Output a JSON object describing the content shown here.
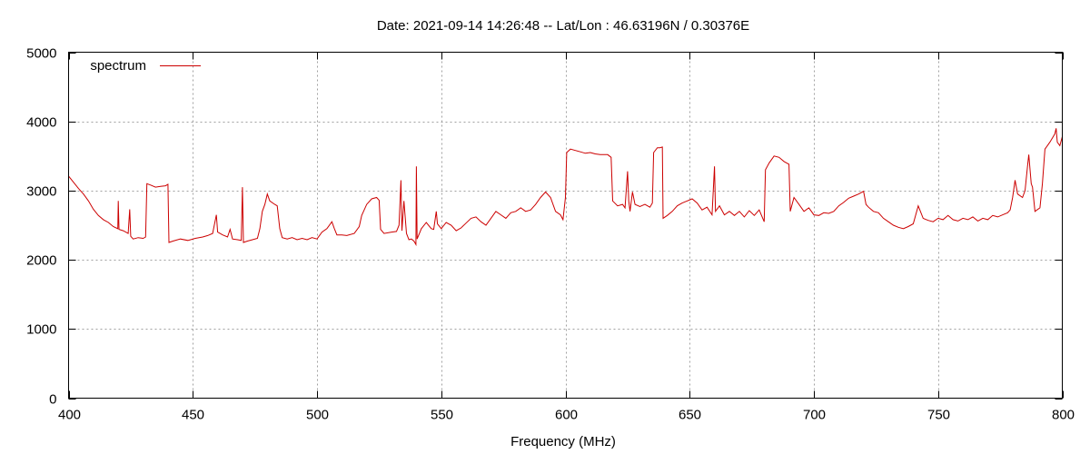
{
  "chart_data": {
    "type": "line",
    "title": "Date: 2021-09-14 14:26:48  --  Lat/Lon : 46.63196N / 0.30376E",
    "xlabel": "Frequency (MHz)",
    "ylabel": "",
    "xlim": [
      400,
      800
    ],
    "ylim": [
      0,
      5000
    ],
    "x_ticks": [
      400,
      450,
      500,
      550,
      600,
      650,
      700,
      750,
      800
    ],
    "y_ticks": [
      0,
      1000,
      2000,
      3000,
      4000,
      5000
    ],
    "grid": true,
    "legend": {
      "position": "top-left"
    },
    "series": [
      {
        "name": "spectrum",
        "color": "#cc0000",
        "points": [
          [
            400,
            3210
          ],
          [
            402,
            3120
          ],
          [
            404,
            3030
          ],
          [
            406,
            2950
          ],
          [
            408,
            2850
          ],
          [
            410,
            2730
          ],
          [
            412,
            2640
          ],
          [
            414,
            2580
          ],
          [
            416,
            2540
          ],
          [
            418,
            2480
          ],
          [
            419.8,
            2450
          ],
          [
            420,
            2850
          ],
          [
            420.3,
            2440
          ],
          [
            422,
            2420
          ],
          [
            424,
            2380
          ],
          [
            424.6,
            2730
          ],
          [
            425,
            2340
          ],
          [
            426,
            2300
          ],
          [
            428,
            2320
          ],
          [
            430,
            2310
          ],
          [
            431,
            2330
          ],
          [
            431.5,
            3100
          ],
          [
            433,
            3080
          ],
          [
            435,
            3050
          ],
          [
            437,
            3060
          ],
          [
            439,
            3070
          ],
          [
            440,
            3090
          ],
          [
            440.4,
            2250
          ],
          [
            442,
            2270
          ],
          [
            445,
            2300
          ],
          [
            448,
            2280
          ],
          [
            451,
            2310
          ],
          [
            454,
            2330
          ],
          [
            456,
            2350
          ],
          [
            458,
            2380
          ],
          [
            459.5,
            2650
          ],
          [
            460,
            2400
          ],
          [
            462,
            2360
          ],
          [
            464,
            2330
          ],
          [
            465,
            2440
          ],
          [
            466,
            2300
          ],
          [
            468,
            2290
          ],
          [
            469.5,
            2280
          ],
          [
            470,
            3050
          ],
          [
            470.4,
            2250
          ],
          [
            472,
            2270
          ],
          [
            474,
            2290
          ],
          [
            476,
            2310
          ],
          [
            477,
            2450
          ],
          [
            478,
            2700
          ],
          [
            479,
            2800
          ],
          [
            480,
            2950
          ],
          [
            481,
            2850
          ],
          [
            483,
            2800
          ],
          [
            484,
            2780
          ],
          [
            485,
            2450
          ],
          [
            486,
            2320
          ],
          [
            488,
            2300
          ],
          [
            490,
            2320
          ],
          [
            492,
            2290
          ],
          [
            494,
            2310
          ],
          [
            496,
            2290
          ],
          [
            498,
            2320
          ],
          [
            500,
            2300
          ],
          [
            502,
            2400
          ],
          [
            504,
            2450
          ],
          [
            506,
            2550
          ],
          [
            507,
            2450
          ],
          [
            508,
            2360
          ],
          [
            510,
            2360
          ],
          [
            512,
            2350
          ],
          [
            515,
            2380
          ],
          [
            517,
            2480
          ],
          [
            518,
            2640
          ],
          [
            520,
            2800
          ],
          [
            522,
            2880
          ],
          [
            524,
            2900
          ],
          [
            525,
            2860
          ],
          [
            525.6,
            2440
          ],
          [
            527,
            2380
          ],
          [
            530,
            2400
          ],
          [
            532,
            2410
          ],
          [
            533,
            2500
          ],
          [
            533.8,
            3150
          ],
          [
            534.2,
            2420
          ],
          [
            535,
            2850
          ],
          [
            536,
            2380
          ],
          [
            537,
            2290
          ],
          [
            538,
            2300
          ],
          [
            539,
            2270
          ],
          [
            539.8,
            2220
          ],
          [
            540,
            3350
          ],
          [
            540.3,
            2300
          ],
          [
            542,
            2450
          ],
          [
            544,
            2540
          ],
          [
            546,
            2450
          ],
          [
            547,
            2440
          ],
          [
            548,
            2700
          ],
          [
            548.5,
            2520
          ],
          [
            550,
            2450
          ],
          [
            552,
            2540
          ],
          [
            554,
            2500
          ],
          [
            556,
            2420
          ],
          [
            558,
            2460
          ],
          [
            560,
            2530
          ],
          [
            562,
            2600
          ],
          [
            564,
            2620
          ],
          [
            566,
            2550
          ],
          [
            568,
            2500
          ],
          [
            570,
            2600
          ],
          [
            572,
            2700
          ],
          [
            574,
            2650
          ],
          [
            576,
            2600
          ],
          [
            578,
            2680
          ],
          [
            580,
            2700
          ],
          [
            582,
            2750
          ],
          [
            584,
            2700
          ],
          [
            586,
            2720
          ],
          [
            588,
            2800
          ],
          [
            590,
            2900
          ],
          [
            592,
            2980
          ],
          [
            594,
            2900
          ],
          [
            596,
            2700
          ],
          [
            598,
            2650
          ],
          [
            599,
            2580
          ],
          [
            600,
            2900
          ],
          [
            600.5,
            3550
          ],
          [
            602,
            3600
          ],
          [
            604,
            3580
          ],
          [
            606,
            3560
          ],
          [
            608,
            3540
          ],
          [
            610,
            3550
          ],
          [
            612,
            3530
          ],
          [
            614,
            3520
          ],
          [
            617,
            3520
          ],
          [
            618.4,
            3480
          ],
          [
            619,
            2850
          ],
          [
            621,
            2780
          ],
          [
            623,
            2800
          ],
          [
            624,
            2750
          ],
          [
            625,
            3280
          ],
          [
            625.5,
            2850
          ],
          [
            626,
            2700
          ],
          [
            627,
            2980
          ],
          [
            628,
            2800
          ],
          [
            630,
            2770
          ],
          [
            632,
            2800
          ],
          [
            634,
            2760
          ],
          [
            635,
            2820
          ],
          [
            635.5,
            3550
          ],
          [
            637,
            3620
          ],
          [
            638,
            3620
          ],
          [
            639,
            3630
          ],
          [
            639.3,
            2600
          ],
          [
            641,
            2640
          ],
          [
            643,
            2700
          ],
          [
            645,
            2780
          ],
          [
            647,
            2820
          ],
          [
            649,
            2850
          ],
          [
            651,
            2880
          ],
          [
            653,
            2820
          ],
          [
            655,
            2720
          ],
          [
            657,
            2760
          ],
          [
            659,
            2650
          ],
          [
            660,
            3350
          ],
          [
            660.4,
            2700
          ],
          [
            662,
            2780
          ],
          [
            664,
            2650
          ],
          [
            666,
            2700
          ],
          [
            668,
            2640
          ],
          [
            670,
            2700
          ],
          [
            672,
            2620
          ],
          [
            674,
            2710
          ],
          [
            676,
            2640
          ],
          [
            678,
            2720
          ],
          [
            680,
            2550
          ],
          [
            680.5,
            3300
          ],
          [
            682,
            3400
          ],
          [
            684,
            3500
          ],
          [
            686,
            3480
          ],
          [
            688,
            3420
          ],
          [
            690,
            3380
          ],
          [
            690.5,
            2700
          ],
          [
            692,
            2900
          ],
          [
            694,
            2800
          ],
          [
            696,
            2700
          ],
          [
            698,
            2750
          ],
          [
            700,
            2650
          ],
          [
            702,
            2640
          ],
          [
            704,
            2680
          ],
          [
            706,
            2670
          ],
          [
            708,
            2700
          ],
          [
            710,
            2780
          ],
          [
            712,
            2830
          ],
          [
            714,
            2890
          ],
          [
            716,
            2920
          ],
          [
            718,
            2950
          ],
          [
            720,
            2990
          ],
          [
            721,
            2800
          ],
          [
            722,
            2760
          ],
          [
            724,
            2700
          ],
          [
            726,
            2680
          ],
          [
            728,
            2600
          ],
          [
            730,
            2550
          ],
          [
            732,
            2500
          ],
          [
            734,
            2470
          ],
          [
            736,
            2450
          ],
          [
            738,
            2480
          ],
          [
            740,
            2520
          ],
          [
            742,
            2780
          ],
          [
            744,
            2600
          ],
          [
            746,
            2570
          ],
          [
            748,
            2550
          ],
          [
            750,
            2600
          ],
          [
            752,
            2580
          ],
          [
            754,
            2640
          ],
          [
            756,
            2580
          ],
          [
            758,
            2560
          ],
          [
            760,
            2600
          ],
          [
            762,
            2580
          ],
          [
            764,
            2620
          ],
          [
            766,
            2560
          ],
          [
            768,
            2600
          ],
          [
            770,
            2580
          ],
          [
            772,
            2640
          ],
          [
            774,
            2620
          ],
          [
            776,
            2650
          ],
          [
            778,
            2680
          ],
          [
            779,
            2720
          ],
          [
            780,
            2900
          ],
          [
            781,
            3150
          ],
          [
            782,
            2950
          ],
          [
            784,
            2900
          ],
          [
            785,
            3000
          ],
          [
            786,
            3350
          ],
          [
            786.5,
            3520
          ],
          [
            787.5,
            3100
          ],
          [
            788,
            3050
          ],
          [
            789,
            2700
          ],
          [
            791,
            2750
          ],
          [
            792,
            3100
          ],
          [
            793,
            3600
          ],
          [
            794,
            3650
          ],
          [
            795,
            3700
          ],
          [
            796,
            3760
          ],
          [
            797,
            3820
          ],
          [
            797.5,
            3900
          ],
          [
            798,
            3700
          ],
          [
            799,
            3650
          ],
          [
            800,
            3780
          ]
        ]
      }
    ]
  }
}
